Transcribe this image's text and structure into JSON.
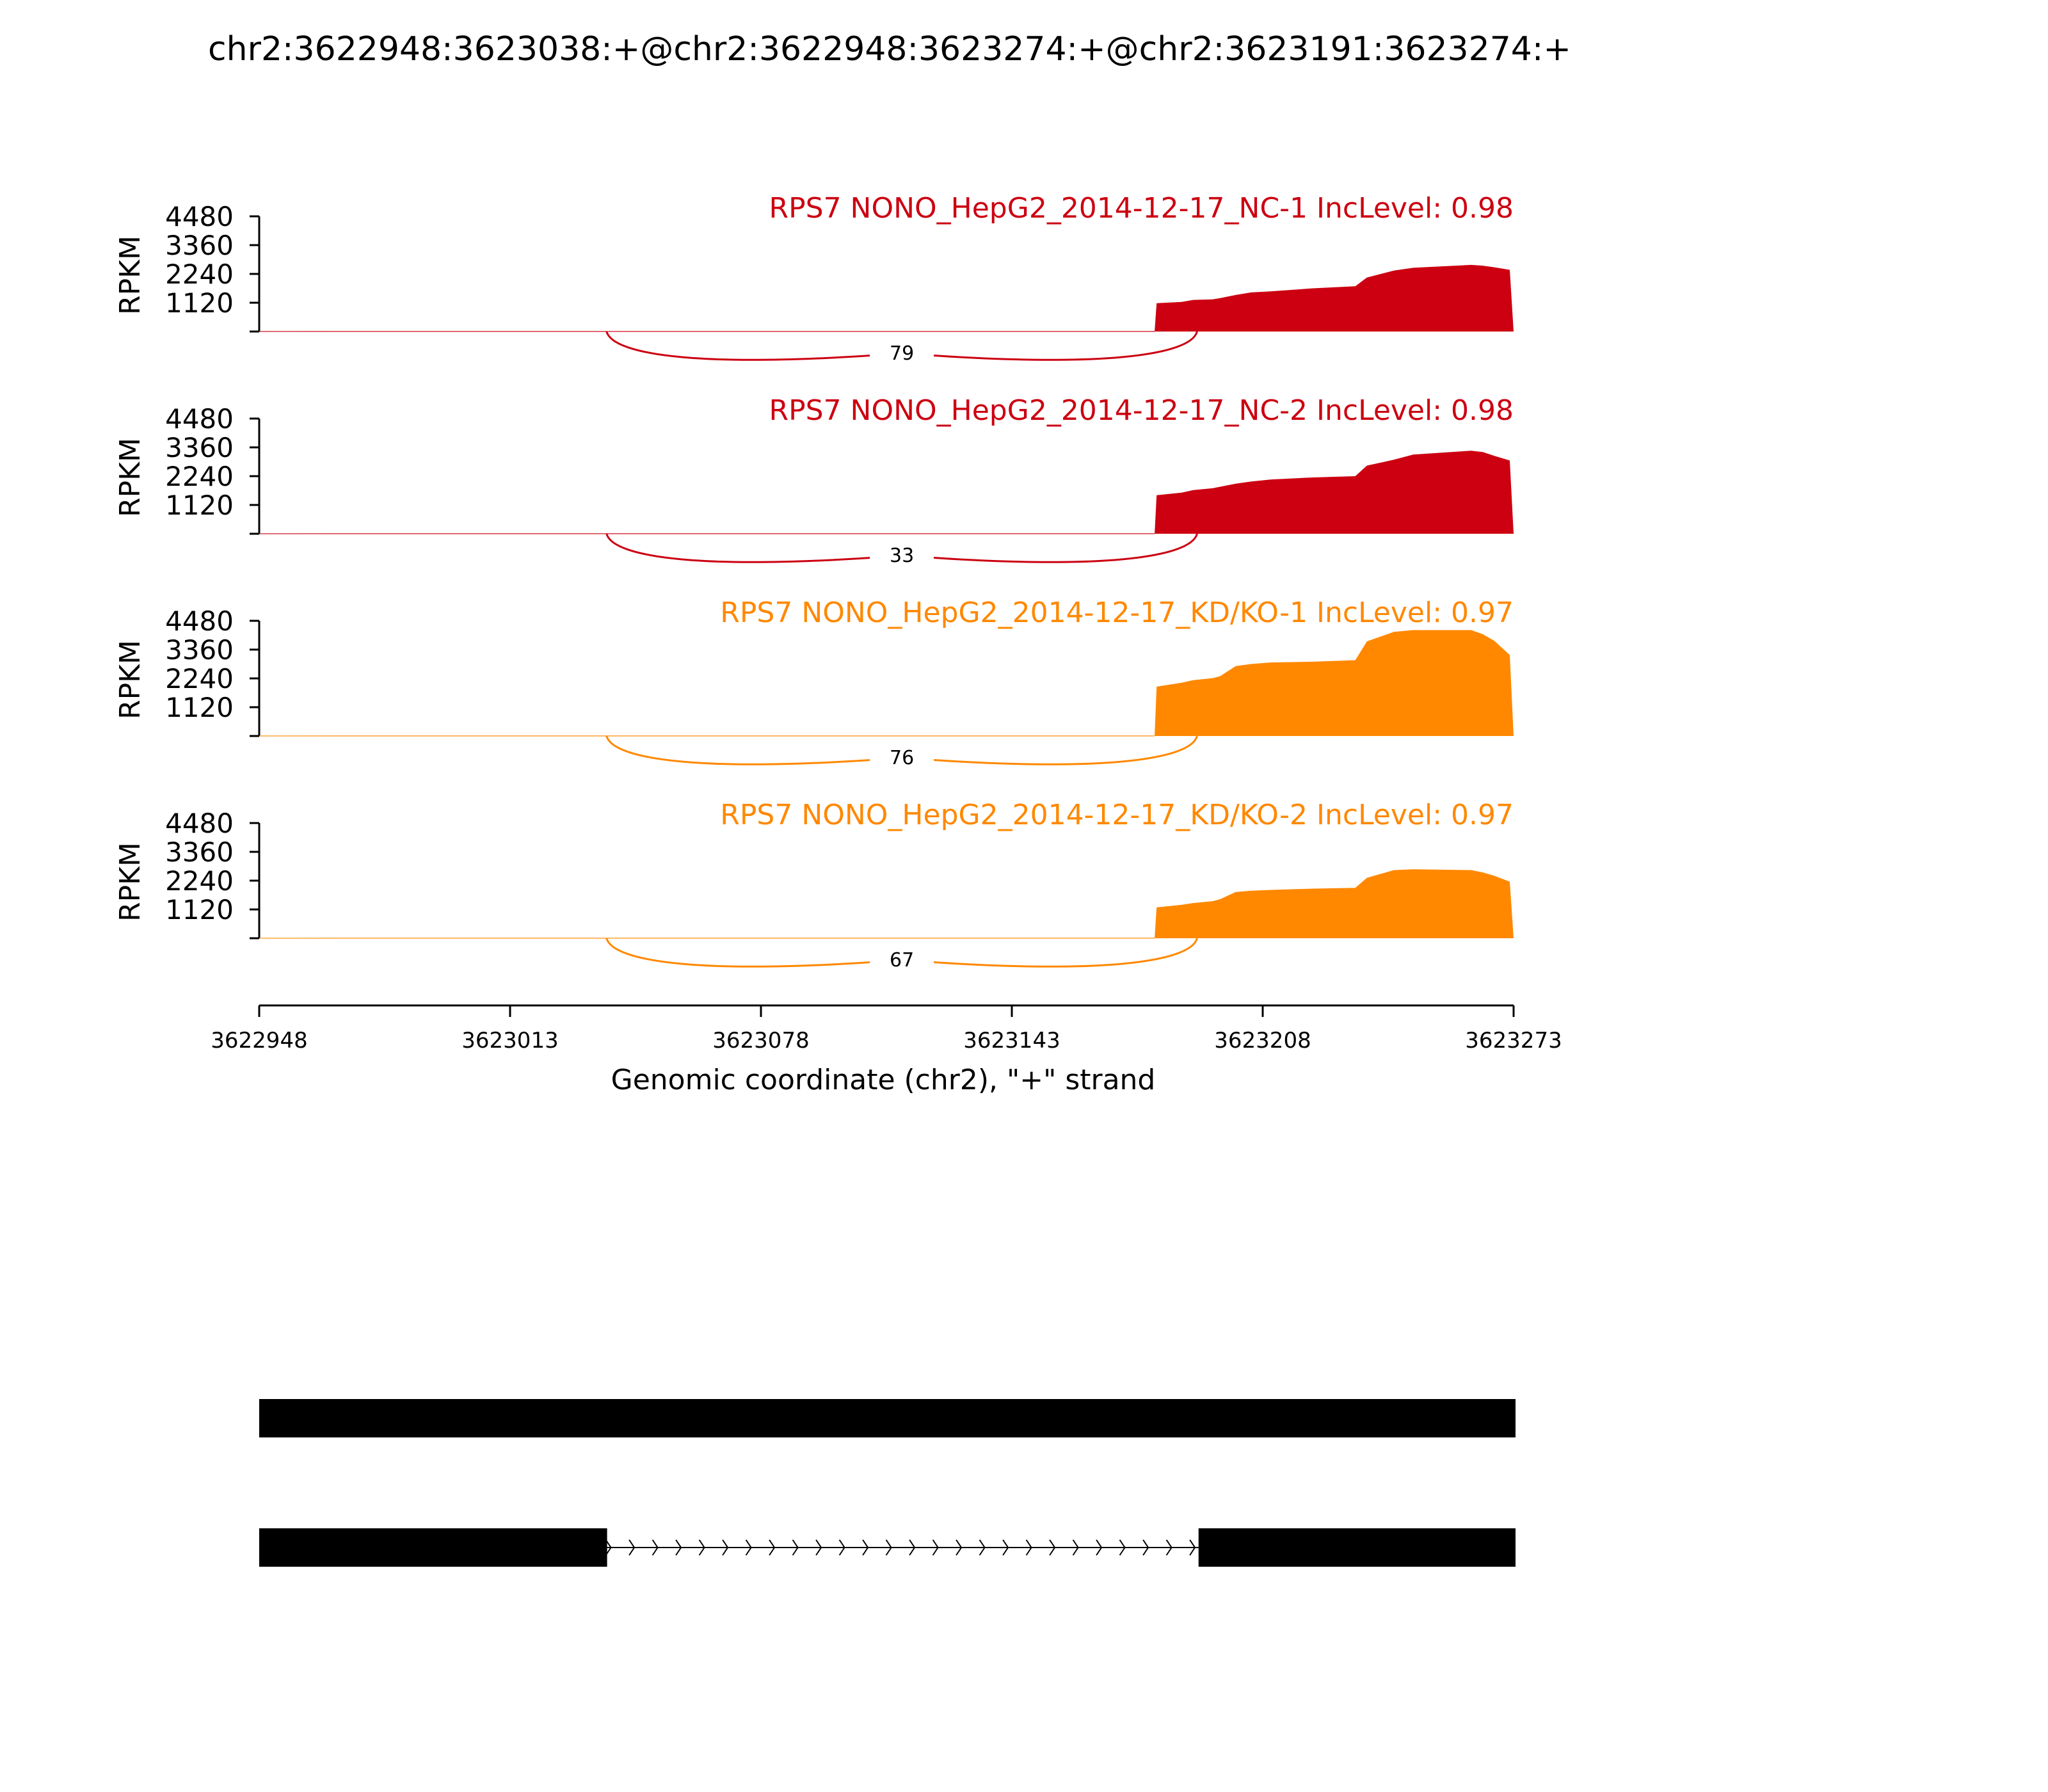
{
  "chart_data": {
    "type": "area",
    "title": "chr2:3622948:3623038:+@chr2:3622948:3623274:+@chr2:3623191:3623274:+",
    "xlabel": "Genomic coordinate (chr2), \"+\" strand",
    "ylabel": "RPKM",
    "xlim": [
      3622948,
      3623273
    ],
    "x_ticks": [
      "3622948",
      "3623013",
      "3623078",
      "3623143",
      "3623208",
      "3623273"
    ],
    "ylim": [
      0,
      4480
    ],
    "y_ticks": [
      "1120",
      "2240",
      "3360",
      "4480"
    ],
    "colors": {
      "NC": "#cc0011",
      "KD": "#ff8800",
      "gene": "#000000"
    },
    "tracks": [
      {
        "name": "RPS7 NONO_HepG2_2014-12-17_NC-1 IncLevel: 0.98",
        "group": "NC",
        "junction": {
          "start": 3623038,
          "end": 3623191,
          "count": "79"
        },
        "coverage": [
          [
            3622948,
            8
          ],
          [
            3623037,
            10
          ],
          [
            3623180,
            10
          ],
          [
            3623180.5,
            1100
          ],
          [
            3623187,
            1150
          ],
          [
            3623190,
            1230
          ],
          [
            3623195,
            1250
          ],
          [
            3623197,
            1300
          ],
          [
            3623201,
            1420
          ],
          [
            3623205,
            1520
          ],
          [
            3623210,
            1560
          ],
          [
            3623221,
            1680
          ],
          [
            3623232,
            1760
          ],
          [
            3623235,
            2100
          ],
          [
            3623242,
            2370
          ],
          [
            3623247,
            2480
          ],
          [
            3623262,
            2590
          ],
          [
            3623265,
            2560
          ],
          [
            3623268,
            2500
          ],
          [
            3623272,
            2400
          ],
          [
            3623273,
            0
          ]
        ]
      },
      {
        "name": "RPS7 NONO_HepG2_2014-12-17_NC-2 IncLevel: 0.98",
        "group": "NC",
        "junction": {
          "start": 3623038,
          "end": 3623191,
          "count": "33"
        },
        "coverage": [
          [
            3622948,
            8
          ],
          [
            3623037,
            10
          ],
          [
            3623180,
            10
          ],
          [
            3623180.5,
            1500
          ],
          [
            3623187,
            1600
          ],
          [
            3623190,
            1700
          ],
          [
            3623195,
            1770
          ],
          [
            3623197,
            1830
          ],
          [
            3623201,
            1950
          ],
          [
            3623205,
            2030
          ],
          [
            3623210,
            2110
          ],
          [
            3623221,
            2190
          ],
          [
            3623232,
            2240
          ],
          [
            3623235,
            2650
          ],
          [
            3623242,
            2880
          ],
          [
            3623247,
            3080
          ],
          [
            3623262,
            3230
          ],
          [
            3623265,
            3180
          ],
          [
            3623268,
            3030
          ],
          [
            3623272,
            2850
          ],
          [
            3623273,
            0
          ]
        ]
      },
      {
        "name": "RPS7 NONO_HepG2_2014-12-17_KD/KO-1 IncLevel: 0.97",
        "group": "KD",
        "junction": {
          "start": 3623038,
          "end": 3623191,
          "count": "76"
        },
        "coverage": [
          [
            3622948,
            8
          ],
          [
            3623037,
            10
          ],
          [
            3623180,
            10
          ],
          [
            3623180.5,
            1920
          ],
          [
            3623187,
            2070
          ],
          [
            3623190,
            2170
          ],
          [
            3623195,
            2250
          ],
          [
            3623197,
            2330
          ],
          [
            3623201,
            2720
          ],
          [
            3623205,
            2800
          ],
          [
            3623210,
            2860
          ],
          [
            3623221,
            2890
          ],
          [
            3623232,
            2950
          ],
          [
            3623235,
            3680
          ],
          [
            3623242,
            4050
          ],
          [
            3623247,
            4120
          ],
          [
            3623262,
            4120
          ],
          [
            3623265,
            3960
          ],
          [
            3623268,
            3700
          ],
          [
            3623272,
            3150
          ],
          [
            3623273,
            0
          ]
        ]
      },
      {
        "name": "RPS7 NONO_HepG2_2014-12-17_KD/KO-2 IncLevel: 0.97",
        "group": "KD",
        "junction": {
          "start": 3623038,
          "end": 3623191,
          "count": "67"
        },
        "coverage": [
          [
            3622948,
            8
          ],
          [
            3623037,
            10
          ],
          [
            3623180,
            10
          ],
          [
            3623180.5,
            1200
          ],
          [
            3623187,
            1300
          ],
          [
            3623190,
            1370
          ],
          [
            3623195,
            1440
          ],
          [
            3623197,
            1520
          ],
          [
            3623201,
            1800
          ],
          [
            3623205,
            1850
          ],
          [
            3623210,
            1880
          ],
          [
            3623221,
            1930
          ],
          [
            3623232,
            1960
          ],
          [
            3623235,
            2350
          ],
          [
            3623242,
            2650
          ],
          [
            3623247,
            2680
          ],
          [
            3623262,
            2650
          ],
          [
            3623265,
            2560
          ],
          [
            3623268,
            2430
          ],
          [
            3623272,
            2200
          ],
          [
            3623273,
            0
          ]
        ]
      }
    ],
    "gene_models": [
      {
        "exons": [
          [
            3622948,
            3623273
          ]
        ]
      },
      {
        "exons": [
          [
            3622948,
            3623038
          ],
          [
            3623191,
            3623273
          ]
        ],
        "intron_direction": "+"
      }
    ]
  }
}
